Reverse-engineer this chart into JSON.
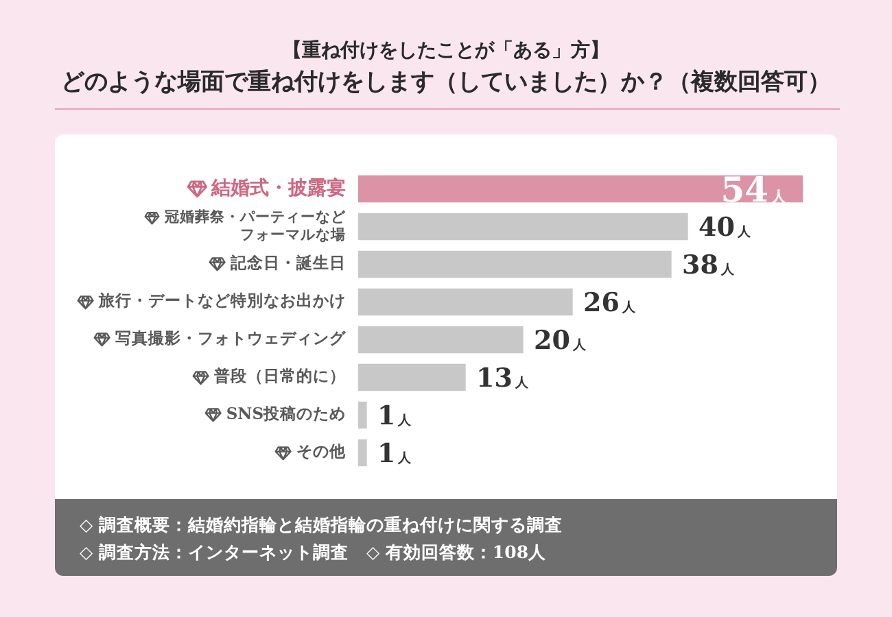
{
  "chart_data": {
    "type": "bar",
    "orientation": "horizontal",
    "title": "【重ね付けをしたことが「ある」方】",
    "subtitle": "どのような場面で重ね付けをします（していました）か？（複数回答可）",
    "categories": [
      "結婚式・披露宴",
      "冠婚葬祭・パーティーなどフォーマルな場",
      "記念日・誕生日",
      "旅行・デートなど特別なお出かけ",
      "写真撮影・フォトウェディング",
      "普段（日常的に）",
      "SNS投稿のため",
      "その他"
    ],
    "values": [
      54,
      40,
      38,
      26,
      20,
      13,
      1,
      1
    ],
    "colors": [
      "#dc93a6",
      "#c8c8c8",
      "#c8c8c8",
      "#c8c8c8",
      "#c8c8c8",
      "#c8c8c8",
      "#c8c8c8",
      "#c8c8c8"
    ],
    "value_labels": [
      "54人",
      "40人",
      "38人",
      "26人",
      "20人",
      "13人",
      "1人",
      "1人"
    ],
    "tick_labels": "y",
    "annotations": [
      "◇ 調査概要：結婚約指輪と結婚指輪の重ね付けに関する調査",
      "◇ 調査方法：インターネット調査　◇ 有効回答数：108人"
    ]
  }
}
